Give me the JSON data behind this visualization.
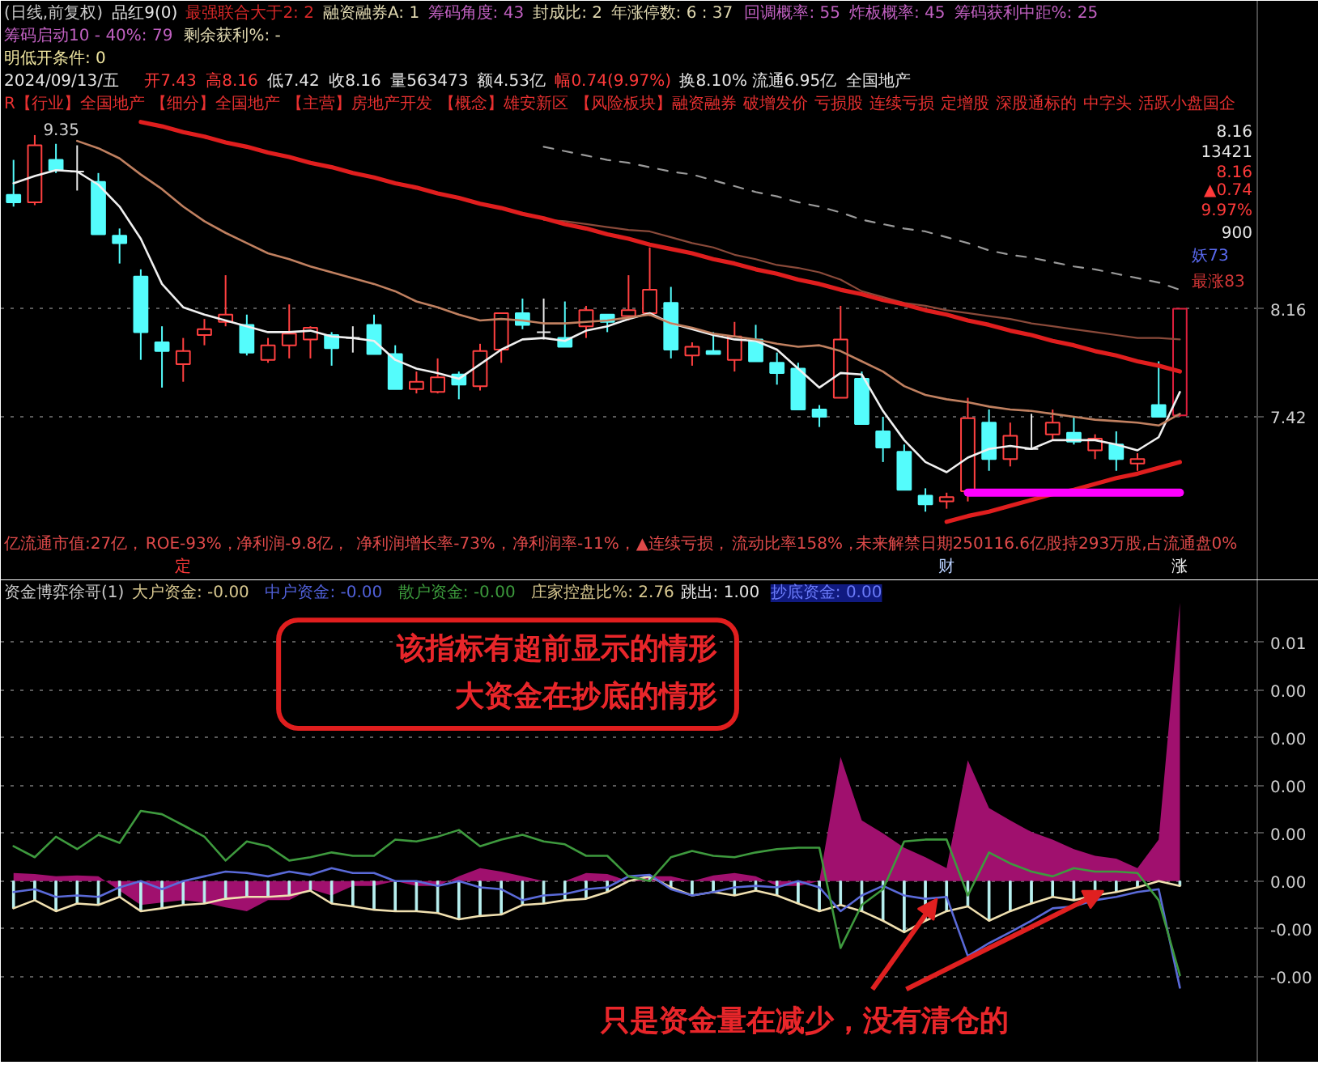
{
  "chart_data": [
    {
      "type": "candlestick",
      "title": "(日线,前复权)",
      "categories": [
        null,
        null,
        null,
        null,
        null,
        null,
        null,
        null,
        null,
        null,
        null,
        null,
        null,
        null,
        null,
        null,
        null,
        null,
        null,
        null,
        null,
        null,
        null,
        null,
        null,
        null,
        null,
        null,
        null,
        null,
        null,
        null,
        null,
        null,
        null,
        null,
        null,
        null,
        null,
        null,
        null,
        null,
        null,
        null,
        null,
        null,
        null,
        null,
        null,
        null,
        null,
        null,
        null,
        null,
        null,
        null
      ],
      "ohlc": [
        [
          8.94,
          9.18,
          8.86,
          8.89
        ],
        [
          8.89,
          9.35,
          8.87,
          9.28
        ],
        [
          9.18,
          9.29,
          9.09,
          9.11
        ],
        [
          9.1,
          9.28,
          8.97,
          9.1
        ],
        [
          9.03,
          9.09,
          8.67,
          8.67
        ],
        [
          8.66,
          8.71,
          8.47,
          8.61
        ],
        [
          8.38,
          8.43,
          7.81,
          8.0
        ],
        [
          7.93,
          8.04,
          7.62,
          7.87
        ],
        [
          7.78,
          7.96,
          7.66,
          7.87
        ],
        [
          7.98,
          8.09,
          7.91,
          8.02
        ],
        [
          8.07,
          8.39,
          8.04,
          8.12
        ],
        [
          8.05,
          8.12,
          7.84,
          7.86
        ],
        [
          7.81,
          7.96,
          7.79,
          7.91
        ],
        [
          7.91,
          8.19,
          7.82,
          7.99
        ],
        [
          7.95,
          8.04,
          7.82,
          8.03
        ],
        [
          7.98,
          8.0,
          7.77,
          7.89
        ],
        [
          7.96,
          8.04,
          7.86,
          7.96
        ],
        [
          8.05,
          8.12,
          7.85,
          7.85
        ],
        [
          7.85,
          7.91,
          7.61,
          7.61
        ],
        [
          7.61,
          7.73,
          7.58,
          7.66
        ],
        [
          7.59,
          7.82,
          7.58,
          7.69
        ],
        [
          7.71,
          7.73,
          7.54,
          7.64
        ],
        [
          7.63,
          7.92,
          7.6,
          7.87
        ],
        [
          7.88,
          8.13,
          7.79,
          8.13
        ],
        [
          8.13,
          8.23,
          8.02,
          8.05
        ],
        [
          8.0,
          8.23,
          7.95,
          8.0
        ],
        [
          7.96,
          8.21,
          7.9,
          7.9
        ],
        [
          8.04,
          8.18,
          7.96,
          8.15
        ],
        [
          8.12,
          8.12,
          8.0,
          8.07
        ],
        [
          8.11,
          8.39,
          8.08,
          8.15
        ],
        [
          8.13,
          8.58,
          8.11,
          8.29
        ],
        [
          8.2,
          8.31,
          7.82,
          7.88
        ],
        [
          7.84,
          7.93,
          7.77,
          7.9
        ],
        [
          7.87,
          8.0,
          7.85,
          7.85
        ],
        [
          7.81,
          8.07,
          7.73,
          7.97
        ],
        [
          7.95,
          8.05,
          7.8,
          7.8
        ],
        [
          7.79,
          7.86,
          7.64,
          7.72
        ],
        [
          7.75,
          7.79,
          7.47,
          7.47
        ],
        [
          7.47,
          7.5,
          7.35,
          7.42
        ],
        [
          7.55,
          8.18,
          7.55,
          7.95
        ],
        [
          7.68,
          7.73,
          7.37,
          7.37
        ],
        [
          7.32,
          7.42,
          7.11,
          7.21
        ],
        [
          7.18,
          7.23,
          6.92,
          6.92
        ],
        [
          6.88,
          6.93,
          6.77,
          6.82
        ],
        [
          6.84,
          6.9,
          6.79,
          6.87
        ],
        [
          6.91,
          7.55,
          6.84,
          7.41
        ],
        [
          7.38,
          7.47,
          7.05,
          7.13
        ],
        [
          7.13,
          7.38,
          7.08,
          7.29
        ],
        [
          7.2,
          7.44,
          7.2,
          7.2
        ],
        [
          7.3,
          7.47,
          7.26,
          7.38
        ],
        [
          7.31,
          7.42,
          7.23,
          7.25
        ],
        [
          7.19,
          7.3,
          7.13,
          7.27
        ],
        [
          7.23,
          7.32,
          7.05,
          7.13
        ],
        [
          7.1,
          7.17,
          7.05,
          7.13
        ],
        [
          7.5,
          7.8,
          7.42,
          7.42
        ],
        [
          7.43,
          8.16,
          7.42,
          8.16
        ]
      ],
      "colors": [
        "#54fcfc",
        "#ff4040",
        "#54fcfc",
        "#e8e8e8",
        "#54fcfc",
        "#54fcfc",
        "#54fcfc",
        "#54fcfc",
        "#ff4040",
        "#ff4040",
        "#ff4040",
        "#54fcfc",
        "#ff4040",
        "#ff4040",
        "#ff4040",
        "#54fcfc",
        "#e8e8e8",
        "#54fcfc",
        "#54fcfc",
        "#ff4040",
        "#ff4040",
        "#54fcfc",
        "#ff4040",
        "#ff4040",
        "#54fcfc",
        "#e8e8e8",
        "#54fcfc",
        "#ff4040",
        "#54fcfc",
        "#ff4040",
        "#ff4040",
        "#54fcfc",
        "#ff4040",
        "#54fcfc",
        "#ff4040",
        "#54fcfc",
        "#54fcfc",
        "#54fcfc",
        "#54fcfc",
        "#ff4040",
        "#54fcfc",
        "#54fcfc",
        "#54fcfc",
        "#54fcfc",
        "#ff4040",
        "#ff4040",
        "#54fcfc",
        "#ff4040",
        "#e8e8e8",
        "#ff4040",
        "#54fcfc",
        "#ff4040",
        "#54fcfc",
        "#ff4040",
        "#54fcfc",
        "#dc1e3c"
      ],
      "series": [
        {
          "type": "line",
          "color": "#f0f0f0",
          "values": [
            9.02,
            9.07,
            9.11,
            9.1,
            9.01,
            8.86,
            8.64,
            8.33,
            8.17,
            8.12,
            8.08,
            8.04,
            8.0,
            8.0,
            8.01,
            7.97,
            7.96,
            7.94,
            7.81,
            7.75,
            7.72,
            7.68,
            7.78,
            7.88,
            7.95,
            7.96,
            7.94,
            8.01,
            8.04,
            8.09,
            8.13,
            8.06,
            8.02,
            7.98,
            7.95,
            7.94,
            7.88,
            7.75,
            7.62,
            7.72,
            7.71,
            7.46,
            7.26,
            7.11,
            7.04,
            7.14,
            7.2,
            7.22,
            7.2,
            7.26,
            7.26,
            7.26,
            7.23,
            7.19,
            7.28,
            7.59
          ]
        },
        {
          "type": "line",
          "color": "#c08060",
          "values": [
            null,
            null,
            null,
            9.31,
            9.26,
            9.19,
            9.08,
            8.98,
            8.86,
            8.76,
            8.68,
            8.61,
            8.54,
            8.5,
            8.45,
            8.41,
            8.37,
            8.33,
            8.28,
            8.21,
            8.17,
            8.12,
            8.08,
            8.09,
            8.08,
            8.06,
            8.06,
            8.07,
            8.08,
            8.1,
            8.12,
            8.06,
            8.03,
            7.99,
            7.97,
            7.95,
            7.92,
            7.9,
            7.91,
            7.87,
            7.8,
            7.73,
            7.63,
            7.57,
            7.54,
            7.52,
            7.49,
            7.47,
            7.46,
            7.44,
            7.42,
            7.4,
            7.39,
            7.38,
            7.36,
            7.44
          ]
        },
        {
          "type": "line",
          "color": "#8a4a3a",
          "values": [
            null,
            null,
            null,
            null,
            null,
            null,
            null,
            null,
            null,
            null,
            null,
            null,
            null,
            null,
            null,
            null,
            null,
            null,
            null,
            null,
            null,
            null,
            null,
            null,
            null,
            8.77,
            8.76,
            8.74,
            8.72,
            8.7,
            8.69,
            8.65,
            8.61,
            8.58,
            8.53,
            8.5,
            8.46,
            8.44,
            8.41,
            8.36,
            8.28,
            8.24,
            8.2,
            8.18,
            8.15,
            8.13,
            8.11,
            8.09,
            8.06,
            8.04,
            8.02,
            8.0,
            7.98,
            7.96,
            7.96,
            7.95
          ]
        },
        {
          "type": "line",
          "color": "#9a9a9a",
          "line_style": "dashed",
          "values": [
            null,
            null,
            null,
            null,
            null,
            null,
            null,
            null,
            null,
            null,
            null,
            null,
            null,
            null,
            null,
            null,
            null,
            null,
            null,
            null,
            null,
            null,
            null,
            null,
            null,
            9.27,
            9.24,
            9.21,
            9.18,
            9.16,
            9.13,
            9.1,
            9.08,
            9.04,
            9.0,
            8.96,
            8.93,
            8.89,
            8.86,
            8.82,
            8.77,
            8.74,
            8.71,
            8.69,
            8.65,
            8.61,
            8.56,
            8.53,
            8.51,
            8.48,
            8.45,
            8.43,
            8.4,
            8.37,
            8.34,
            8.29
          ]
        },
        {
          "type": "line",
          "color": "#e01e1e",
          "values": [
            null,
            null,
            null,
            null,
            null,
            null,
            9.44,
            9.41,
            9.37,
            9.34,
            9.3,
            9.27,
            9.23,
            9.2,
            9.16,
            9.13,
            9.09,
            9.06,
            9.02,
            8.99,
            8.95,
            8.92,
            8.88,
            8.85,
            8.81,
            8.78,
            8.74,
            8.71,
            8.67,
            8.64,
            8.6,
            8.57,
            8.54,
            8.5,
            8.47,
            8.43,
            8.4,
            8.36,
            8.33,
            8.29,
            8.26,
            8.22,
            8.19,
            8.15,
            8.12,
            8.08,
            8.05,
            8.01,
            7.98,
            7.94,
            7.91,
            7.87,
            7.84,
            7.8,
            7.77,
            7.73
          ]
        },
        {
          "type": "line",
          "color": "#e01e1e",
          "values": [
            null,
            null,
            null,
            null,
            null,
            null,
            null,
            null,
            null,
            null,
            null,
            null,
            null,
            null,
            null,
            null,
            null,
            null,
            null,
            null,
            null,
            null,
            null,
            null,
            null,
            null,
            null,
            null,
            null,
            null,
            null,
            null,
            null,
            null,
            null,
            null,
            null,
            null,
            null,
            null,
            null,
            null,
            null,
            null,
            6.7,
            6.74,
            6.77,
            6.81,
            6.85,
            6.89,
            6.92,
            6.96,
            7.0,
            7.03,
            7.07,
            7.11
          ]
        },
        {
          "type": "line",
          "color": "#ff00ff",
          "values": [
            null,
            null,
            null,
            null,
            null,
            null,
            null,
            null,
            null,
            null,
            null,
            null,
            null,
            null,
            null,
            null,
            null,
            null,
            null,
            null,
            null,
            null,
            null,
            null,
            null,
            null,
            null,
            null,
            null,
            null,
            null,
            null,
            null,
            null,
            null,
            null,
            null,
            null,
            null,
            null,
            null,
            null,
            null,
            null,
            null,
            6.9,
            6.9,
            6.9,
            6.9,
            6.9,
            6.9,
            6.9,
            6.9,
            6.9,
            6.9,
            6.9
          ]
        }
      ],
      "ylim": [
        6.3,
        10.27
      ],
      "yticks": [
        7.42,
        8.16
      ],
      "grid": "y",
      "annotations": [
        "品红9(0)",
        "最强联合大于2: 2",
        "融资融券A: 1",
        "筹码角度: 43",
        "封成比: 2",
        "年涨停数: 6 : 37",
        "回调概率: 55",
        "炸板概率: 45",
        "筹码获利中距%: 25",
        "筹码启动10 - 40%: 79",
        "剩余获利%: -",
        "明低开条件: 0",
        "2024/09/13/五",
        "开7.43",
        "高8.16",
        "低7.42",
        "收8.16",
        "量563473",
        "额4.53亿",
        "幅0.74(9.97%)",
        "换8.10%",
        "流通6.95亿",
        "全国地产",
        "R【行业】全国地产",
        "【细分】全国地产",
        "【主营】房地产开发",
        "【概念】雄安新区",
        "【风险板块】融资融券",
        "破增发价",
        "亏损股",
        "连续亏损",
        "定增股",
        "深股通标的",
        "中字头",
        "活跃小盘国企",
        "8.16",
        "13421",
        "8.16",
        "▲0.74",
        "9.97%",
        "900",
        "妖73",
        "最涨83",
        "亿流通市值:27亿，",
        "ROE-93%，",
        "净利润-9.8亿，",
        "净利润增长率-73%，",
        "净利润率-11%，",
        "▲连续亏损，",
        "流动比率158%，",
        "未来解禁日期250116.6亿股持293万股,占流通盘0%",
        "定",
        "财",
        "涨",
        "9.35"
      ]
    },
    {
      "type": "line",
      "title": "资金博弈徐哥(1)",
      "categories": [
        null,
        null,
        null,
        null,
        null,
        null,
        null,
        null,
        null,
        null,
        null,
        null,
        null,
        null,
        null,
        null,
        null,
        null,
        null,
        null,
        null,
        null,
        null,
        null,
        null,
        null,
        null,
        null,
        null,
        null,
        null,
        null,
        null,
        null,
        null,
        null,
        null,
        null,
        null,
        null,
        null,
        null,
        null,
        null,
        null,
        null,
        null,
        null,
        null,
        null,
        null,
        null,
        null,
        null,
        null,
        null
      ],
      "series": [
        {
          "type": "area",
          "color": "#a0106e",
          "values": [
            0.00017,
            0.00015,
            0.0001,
            0.00012,
            0.0001,
            -0.0002,
            -0.0005,
            -0.00045,
            -0.0004,
            -0.00045,
            -0.00055,
            -0.00063,
            -0.0004,
            -0.0004,
            -0.00017,
            -0.0003,
            -0.0001,
            -0.0001,
            0,
            -0.0001,
            -0.0001,
            0.0001,
            0.00027,
            0.0002,
            0.0001,
            0,
            0,
            0.00017,
            0.00015,
            0,
            0.0001,
            0.0001,
            0,
            0.00012,
            0.00017,
            0.0001,
            -0.0001,
            -0.0001,
            0,
            0.0026,
            0.00127,
            0.001,
            0.0007,
            0.0005,
            0.00027,
            0.00253,
            0.00153,
            0.00127,
            0.00103,
            0.00087,
            0.00067,
            0.00053,
            0.00047,
            0.00027,
            0.00087,
            0.00583
          ]
        },
        {
          "type": "bar",
          "color": "#b8f0f0",
          "values": [
            -0.00057,
            -0.0004,
            -0.00063,
            -0.00047,
            -0.0005,
            -0.00033,
            -0.00063,
            -0.00057,
            -0.0005,
            -0.00047,
            -0.00037,
            -0.00033,
            -0.00033,
            -0.0003,
            -0.0002,
            -0.00047,
            -0.00053,
            -0.0006,
            -0.00063,
            -0.00063,
            -0.00067,
            -0.0008,
            -0.00073,
            -0.0007,
            -0.0005,
            -0.00047,
            -0.0004,
            -0.00037,
            -0.00023,
            0,
            0.0001,
            -0.00013,
            -0.0003,
            -0.00023,
            -0.0003,
            -0.0002,
            -0.0003,
            -0.00047,
            -0.00063,
            -0.0005,
            -0.00063,
            -0.00083,
            -0.00107,
            -0.00083,
            -0.00063,
            -0.00053,
            -0.00083,
            -0.00063,
            -0.00047,
            -0.00033,
            -0.0004,
            -0.0003,
            -0.00023,
            -0.00013,
            0,
            -0.0001
          ]
        },
        {
          "type": "line",
          "color": "#f0e0b0",
          "values": [
            -0.00057,
            -0.0004,
            -0.00063,
            -0.00047,
            -0.0005,
            -0.00033,
            -0.00063,
            -0.00057,
            -0.0005,
            -0.00047,
            -0.00037,
            -0.00033,
            -0.00033,
            -0.0003,
            -0.0002,
            -0.00047,
            -0.00053,
            -0.0006,
            -0.00063,
            -0.00063,
            -0.00067,
            -0.0008,
            -0.00073,
            -0.0007,
            -0.0005,
            -0.00047,
            -0.0004,
            -0.00037,
            -0.00023,
            0,
            0.0001,
            -0.00013,
            -0.0003,
            -0.00023,
            -0.0003,
            -0.0002,
            -0.0003,
            -0.00047,
            -0.00063,
            -0.0005,
            -0.00063,
            -0.00083,
            -0.00107,
            -0.00083,
            -0.00063,
            -0.00053,
            -0.00083,
            -0.00063,
            -0.00047,
            -0.00033,
            -0.0004,
            -0.0003,
            -0.00023,
            -0.00013,
            0,
            -0.0001
          ]
        },
        {
          "type": "line",
          "color": "#5a6ad8",
          "values": [
            -0.00023,
            -0.00017,
            -0.00033,
            -0.0003,
            -0.00033,
            -0.00013,
            0,
            -0.00017,
            0,
            0.0001,
            0.0002,
            0.00017,
            0.0001,
            0.0002,
            0.00013,
            0.00027,
            0.00017,
            0.00017,
            0,
            0,
            -0.0001,
            0,
            -0.00013,
            -0.00017,
            -0.0004,
            -0.0003,
            -0.00027,
            -0.00017,
            -0.00013,
            0.0001,
            0.00013,
            -0.00017,
            -0.0003,
            -0.00023,
            -0.00013,
            -0.0001,
            -0.00013,
            0,
            -0.00013,
            -0.00063,
            -0.0003,
            -0.0001,
            -0.0003,
            -0.00037,
            -0.00033,
            -0.00157,
            -0.0013,
            -0.00107,
            -0.00083,
            -0.00057,
            -0.00053,
            -0.0004,
            -0.00033,
            -0.00023,
            -0.00017,
            -0.00223
          ]
        },
        {
          "type": "line",
          "color": "#3e9a3e",
          "values": [
            0.00073,
            0.0005,
            0.00093,
            0.00067,
            0.00097,
            0.0008,
            0.00147,
            0.0014,
            0.00117,
            0.00093,
            0.00043,
            0.00083,
            0.00073,
            0.00043,
            0.0005,
            0.0006,
            0.00053,
            0.00053,
            0.00087,
            0.00083,
            0.00093,
            0.00107,
            0.00073,
            0.00087,
            0.00097,
            0.00083,
            0.00077,
            0.00053,
            0.00053,
            0.0001,
            0,
            0.0005,
            0.00063,
            0.00053,
            0.0005,
            0.0006,
            0.00067,
            0.0007,
            0.0007,
            -0.0014,
            -0.0005,
            -0.00017,
            0.00083,
            0.00087,
            0.00087,
            -0.0003,
            0.0006,
            0.00037,
            0.0002,
            0.0001,
            0.00027,
            0.0002,
            0.0002,
            0.00017,
            -0.0004,
            -0.00197
          ]
        }
      ],
      "ylim": [
        -0.0038,
        0.0063
      ],
      "yticks": [
        {
          "value": -0.002,
          "label": "-0.00"
        },
        {
          "value": -0.001,
          "label": "-0.00"
        },
        {
          "value": 0,
          "label": "0.00"
        },
        {
          "value": 0.001,
          "label": "0.00"
        },
        {
          "value": 0.002,
          "label": "0.00"
        },
        {
          "value": 0.003,
          "label": "0.00"
        },
        {
          "value": 0.004,
          "label": "0.00"
        },
        {
          "value": 0.005,
          "label": "0.01"
        }
      ],
      "grid": "y",
      "annotations": [
        "大户资金: -0.00",
        "中户资金: -0.00",
        "散户资金: -0.00",
        "庄家控盘比%: 2.76",
        "跳出: 1.00",
        "抄底资金: 0.00",
        "该指标有超前显示的情形",
        "大资金在抄底的情形",
        "只是资金量在减少，没有清仓的"
      ]
    }
  ]
}
